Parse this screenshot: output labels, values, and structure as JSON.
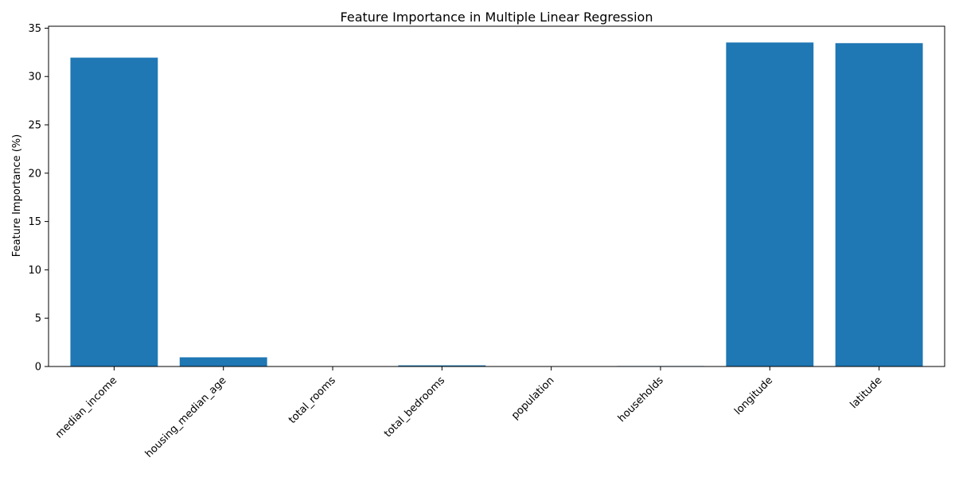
{
  "chart_data": {
    "type": "bar",
    "title": "Feature Importance in Multiple Linear Regression",
    "xlabel": "",
    "ylabel": "Feature Importance (%)",
    "categories": [
      "median_income",
      "housing_median_age",
      "total_rooms",
      "total_bedrooms",
      "population",
      "households",
      "longitude",
      "latitude"
    ],
    "values": [
      31.95,
      0.95,
      0.02,
      0.12,
      0.02,
      0.05,
      33.52,
      33.45
    ],
    "ylim": [
      0,
      35.2
    ],
    "yticks": [
      0,
      5,
      10,
      15,
      20,
      25,
      30,
      35
    ],
    "grid": false,
    "bar_color": "#1f77b4"
  }
}
